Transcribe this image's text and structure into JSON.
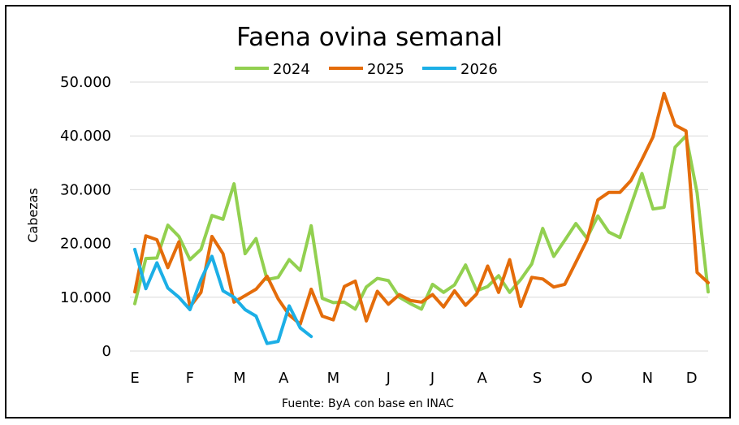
{
  "chart_data": {
    "type": "line",
    "title": "Faena ovina semanal",
    "ylabel": "Cabezas",
    "source": "Fuente: ByA con base en INAC",
    "ylim": [
      0,
      50000
    ],
    "y_ticks": [
      "0",
      "10.000",
      "20.000",
      "30.000",
      "40.000",
      "50.000"
    ],
    "y_tick_values": [
      0,
      10000,
      20000,
      30000,
      40000,
      50000
    ],
    "x_month_labels": [
      "E",
      "F",
      "M",
      "A",
      "M",
      "J",
      "J",
      "A",
      "S",
      "O",
      "N",
      "D"
    ],
    "x_month_label_weeks": [
      1,
      6,
      10.5,
      14.5,
      19,
      24,
      28,
      32.5,
      37.5,
      42,
      47.5,
      51.5
    ],
    "weeks_range": [
      1,
      53
    ],
    "grid": true,
    "legend_position": "top",
    "series": [
      {
        "name": "2024",
        "color": "#92D050",
        "values": [
          8800,
          17200,
          17300,
          23400,
          21300,
          17000,
          18900,
          25200,
          24500,
          31100,
          18100,
          20900,
          13300,
          13700,
          17000,
          15000,
          23300,
          9800,
          9000,
          9100,
          7800,
          11900,
          13500,
          13100,
          10000,
          8800,
          7800,
          12400,
          10900,
          12300,
          16000,
          11200,
          12000,
          14000,
          10900,
          13300,
          16200,
          22800,
          17600,
          20600,
          23700,
          21000,
          25100,
          22100,
          21100,
          27100,
          33000,
          26400,
          26700,
          37900,
          40000,
          29400,
          11000
        ]
      },
      {
        "name": "2025",
        "color": "#E46C0A",
        "values": [
          11000,
          21400,
          20700,
          15500,
          20300,
          8200,
          10900,
          21300,
          18100,
          9100,
          10300,
          11500,
          13900,
          9700,
          6700,
          5000,
          11500,
          6500,
          5800,
          12000,
          13000,
          5600,
          11100,
          8700,
          10500,
          9400,
          9100,
          10500,
          8200,
          11200,
          8500,
          10600,
          15800,
          10900,
          17000,
          8300,
          13700,
          13400,
          11900,
          12400,
          16500,
          20600,
          28100,
          29500,
          29500,
          31700,
          35600,
          39800,
          47900,
          42000,
          40900,
          14600,
          12700
        ]
      },
      {
        "name": "2026",
        "color": "#1CAFE6",
        "values": [
          18900,
          11600,
          16400,
          11700,
          10000,
          7700,
          13300,
          17600,
          11200,
          10000,
          7700,
          6500,
          1400,
          1800,
          8400,
          4300,
          2700
        ]
      }
    ]
  }
}
